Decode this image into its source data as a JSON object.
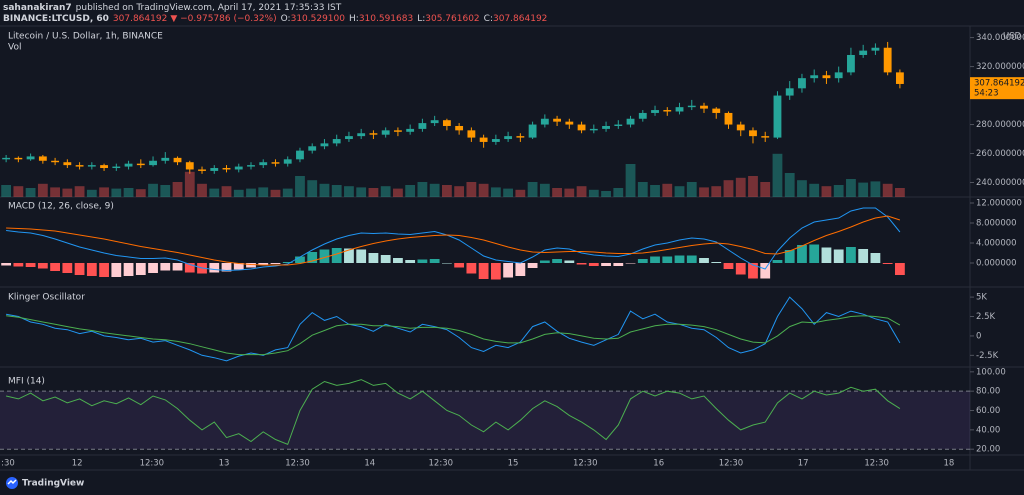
{
  "header": {
    "publisher": "sahanakiran7",
    "published": "published on TradingView.com, April 17, 2021 17:35:33 IST",
    "symbol": "BINANCE:LTCUSD, 60",
    "price": "307.864192",
    "change": "▼ −0.975786 (−0.32%)",
    "ohlc": [
      {
        "label": "O:",
        "value": "310.529100"
      },
      {
        "label": "H:",
        "value": "310.591683"
      },
      {
        "label": "L:",
        "value": "305.761602"
      },
      {
        "label": "C:",
        "value": "307.864192"
      }
    ]
  },
  "chart_data": [
    {
      "type": "candlestick",
      "title": "Litecoin / U.S. Dollar, 1h, BINANCE",
      "currency": "USD",
      "up_color": "#26a69a",
      "down_color": "#ff9800",
      "open": [
        256,
        257,
        256,
        258,
        255,
        254,
        252,
        251,
        252,
        250,
        251,
        253,
        252,
        255,
        257,
        254,
        249,
        248,
        250,
        249,
        251,
        252,
        254,
        253,
        256,
        262,
        265,
        267,
        270,
        272,
        274,
        273,
        276,
        275,
        277,
        281,
        283,
        279,
        276,
        271,
        268,
        270,
        272,
        271,
        280,
        284,
        282,
        280,
        276,
        277,
        279,
        280,
        284,
        288,
        290,
        289,
        292,
        293,
        291,
        288,
        280,
        276,
        272,
        271,
        300,
        305,
        312,
        314,
        312,
        316,
        328,
        331,
        333,
        316
      ],
      "high": [
        259,
        258,
        260,
        259,
        257,
        256,
        254,
        254,
        253,
        253,
        255,
        256,
        258,
        261,
        258,
        255,
        251,
        252,
        252,
        253,
        254,
        256,
        256,
        258,
        264,
        267,
        270,
        273,
        275,
        277,
        276,
        278,
        278,
        280,
        284,
        286,
        284,
        281,
        278,
        273,
        273,
        275,
        274,
        282,
        287,
        286,
        284,
        282,
        280,
        282,
        283,
        286,
        290,
        293,
        292,
        295,
        297,
        295,
        292,
        289,
        282,
        278,
        275,
        303,
        310,
        315,
        318,
        317,
        320,
        333,
        335,
        336,
        337,
        318
      ],
      "low": [
        254,
        254,
        255,
        253,
        252,
        250,
        249,
        249,
        248,
        248,
        249,
        250,
        251,
        253,
        252,
        246,
        246,
        246,
        247,
        247,
        249,
        250,
        251,
        251,
        254,
        260,
        263,
        265,
        268,
        270,
        270,
        271,
        272,
        273,
        275,
        279,
        276,
        273,
        268,
        264,
        266,
        268,
        268,
        270,
        278,
        279,
        277,
        274,
        274,
        275,
        277,
        278,
        282,
        286,
        286,
        287,
        290,
        288,
        284,
        277,
        272,
        267,
        268,
        270,
        297,
        302,
        309,
        308,
        309,
        314,
        326,
        328,
        314,
        305
      ],
      "close": [
        257,
        256,
        258,
        255,
        254,
        252,
        251,
        252,
        250,
        251,
        253,
        252,
        255,
        257,
        254,
        249,
        248,
        250,
        249,
        251,
        252,
        254,
        253,
        256,
        262,
        265,
        267,
        270,
        272,
        274,
        273,
        276,
        275,
        277,
        281,
        283,
        279,
        276,
        271,
        268,
        270,
        272,
        271,
        280,
        284,
        282,
        280,
        276,
        277,
        279,
        280,
        284,
        288,
        290,
        289,
        292,
        293,
        291,
        288,
        280,
        276,
        272,
        271,
        300,
        305,
        312,
        314,
        312,
        316,
        328,
        331,
        333,
        316,
        308
      ],
      "ylim": [
        230,
        348
      ],
      "yticks": [
        {
          "value": 240,
          "label": "240.000000"
        },
        {
          "value": 260,
          "label": "260.000000"
        },
        {
          "value": 280,
          "label": "280.000000"
        },
        {
          "value": 300,
          "label": "300.000000"
        },
        {
          "value": 320,
          "label": "320.000000"
        },
        {
          "value": 340,
          "label": "340.000000"
        }
      ],
      "last_price": {
        "value": 307.864192,
        "label": "307.864192",
        "countdown": "54:23",
        "color": "#ff9800"
      },
      "xlim": [
        0,
        78
      ],
      "xticks": [
        {
          "value": 0.65,
          "label": ":30"
        },
        {
          "value": 6.3,
          "label": "12"
        },
        {
          "value": 12.4,
          "label": "12:30"
        },
        {
          "value": 18.3,
          "label": "13"
        },
        {
          "value": 24.3,
          "label": "12:30"
        },
        {
          "value": 30.2,
          "label": "14"
        },
        {
          "value": 36.0,
          "label": "12:30"
        },
        {
          "value": 41.9,
          "label": "15"
        },
        {
          "value": 47.8,
          "label": "12:30"
        },
        {
          "value": 53.8,
          "label": "16"
        },
        {
          "value": 59.7,
          "label": "12:30"
        },
        {
          "value": 65.6,
          "label": "17"
        },
        {
          "value": 71.6,
          "label": "12:30"
        },
        {
          "value": 77.5,
          "label": "18"
        }
      ]
    },
    {
      "type": "volume",
      "title": "Vol",
      "ylim": [
        0,
        100
      ],
      "values": [
        20,
        18,
        15,
        22,
        16,
        14,
        18,
        12,
        16,
        14,
        15,
        13,
        22,
        20,
        25,
        42,
        22,
        14,
        18,
        12,
        14,
        16,
        12,
        14,
        35,
        28,
        22,
        20,
        18,
        16,
        15,
        18,
        14,
        20,
        25,
        22,
        20,
        18,
        25,
        22,
        16,
        14,
        12,
        25,
        22,
        15,
        14,
        18,
        12,
        10,
        15,
        55,
        25,
        20,
        22,
        18,
        25,
        16,
        18,
        28,
        32,
        35,
        25,
        72,
        40,
        28,
        22,
        18,
        20,
        30,
        24,
        26,
        22,
        15
      ]
    },
    {
      "type": "macd",
      "title": "MACD (12, 26, close, 9)",
      "ylim": [
        -4.8,
        13.2
      ],
      "yticks": [
        {
          "value": 0,
          "label": "0.000000"
        },
        {
          "value": 4,
          "label": "4.000000"
        },
        {
          "value": 8,
          "label": "8.000000"
        },
        {
          "value": 12,
          "label": "12.000000"
        }
      ],
      "histogram": [
        -0.5,
        -0.7,
        -0.8,
        -1.1,
        -1.6,
        -2.0,
        -2.4,
        -2.6,
        -2.8,
        -2.8,
        -2.6,
        -2.4,
        -2.0,
        -1.5,
        -1.5,
        -1.9,
        -2.1,
        -1.9,
        -1.7,
        -1.3,
        -0.9,
        -0.4,
        -0.2,
        0.2,
        1.3,
        2.2,
        2.7,
        3.0,
        2.9,
        2.7,
        2.0,
        1.6,
        1.0,
        0.6,
        0.7,
        0.8,
        0,
        -0.9,
        -2.1,
        -3.2,
        -3.3,
        -2.9,
        -2.6,
        -1.0,
        0.5,
        0.8,
        0.5,
        -0.3,
        -0.6,
        -0.6,
        -0.6,
        -0.1,
        0.8,
        1.3,
        1.3,
        1.5,
        1.5,
        1.0,
        0.2,
        -1.2,
        -2.3,
        -3.1,
        -3.1,
        0.6,
        2.6,
        3.6,
        3.7,
        3.1,
        2.7,
        3.2,
        2.8,
        2.0,
        -0.2,
        -2.4
      ],
      "series": [
        {
          "color": "#2196f3",
          "values": [
            6.5,
            6.2,
            6.0,
            5.5,
            4.8,
            4.0,
            3.2,
            2.6,
            2.0,
            1.5,
            1.2,
            0.9,
            0.9,
            1.0,
            0.6,
            -0.3,
            -1.0,
            -1.3,
            -1.5,
            -1.4,
            -1.2,
            -0.8,
            -0.6,
            -0.2,
            1.2,
            2.6,
            3.8,
            4.8,
            5.5,
            6.0,
            5.9,
            6.0,
            5.8,
            5.7,
            6.0,
            6.3,
            5.6,
            4.6,
            3.0,
            1.4,
            0.6,
            0.3,
            0,
            1.2,
            2.6,
            3.0,
            2.8,
            2.0,
            1.6,
            1.4,
            1.3,
            1.8,
            2.8,
            3.6,
            4.0,
            4.6,
            5.0,
            4.8,
            4.2,
            2.6,
            1.0,
            -0.4,
            -1.2,
            2.4,
            5.0,
            7.0,
            8.2,
            8.6,
            9.0,
            10.4,
            11.0,
            11.0,
            9.2,
            6.2
          ]
        },
        {
          "color": "#ff6d00",
          "values": [
            7.0,
            6.9,
            6.8,
            6.6,
            6.4,
            6.0,
            5.6,
            5.2,
            4.8,
            4.3,
            3.8,
            3.3,
            2.9,
            2.5,
            2.1,
            1.6,
            1.1,
            0.6,
            0.2,
            -0.1,
            -0.3,
            -0.4,
            -0.4,
            -0.4,
            -0.1,
            0.4,
            1.1,
            1.8,
            2.6,
            3.3,
            3.9,
            4.4,
            4.8,
            5.1,
            5.3,
            5.5,
            5.6,
            5.5,
            5.1,
            4.6,
            3.9,
            3.2,
            2.6,
            2.2,
            2.1,
            2.2,
            2.3,
            2.3,
            2.2,
            2.0,
            1.9,
            1.9,
            2.0,
            2.3,
            2.7,
            3.1,
            3.5,
            3.8,
            4.0,
            3.8,
            3.3,
            2.7,
            1.9,
            1.8,
            2.4,
            3.4,
            4.5,
            5.5,
            6.3,
            7.2,
            8.2,
            9.0,
            9.4,
            8.6
          ]
        }
      ]
    },
    {
      "type": "klinger",
      "title": "Klinger Oscillator",
      "ylim": [
        -4000,
        6300
      ],
      "yticks": [
        {
          "value": -2500,
          "label": "-2.5K"
        },
        0,
        {
          "value": 2500,
          "label": "2.5K"
        },
        {
          "value": 5000,
          "label": "5K"
        }
      ],
      "series": [
        {
          "color": "#2196f3",
          "values": [
            2800,
            2500,
            1800,
            1500,
            1000,
            800,
            300,
            600,
            0,
            -200,
            -500,
            -300,
            -800,
            -600,
            -1200,
            -1800,
            -2500,
            -2800,
            -3200,
            -2600,
            -2200,
            -2500,
            -1800,
            -1500,
            1500,
            3000,
            2000,
            2500,
            1500,
            1200,
            600,
            1500,
            1000,
            500,
            1500,
            1200,
            800,
            -200,
            -1500,
            -2000,
            -1200,
            -1500,
            -800,
            1200,
            1800,
            600,
            -300,
            -800,
            -1200,
            -500,
            200,
            3200,
            2200,
            2800,
            1800,
            1500,
            1000,
            800,
            -200,
            -1500,
            -2200,
            -1800,
            -1000,
            2500,
            5000,
            3500,
            1500,
            3000,
            2500,
            3200,
            2800,
            2200,
            1800,
            -900
          ]
        },
        {
          "color": "#4caf50",
          "values": [
            2600,
            2400,
            2100,
            1800,
            1500,
            1200,
            900,
            700,
            400,
            200,
            0,
            -200,
            -400,
            -500,
            -700,
            -1000,
            -1400,
            -1800,
            -2200,
            -2400,
            -2400,
            -2400,
            -2200,
            -1900,
            -1000,
            100,
            700,
            1300,
            1500,
            1500,
            1300,
            1300,
            1200,
            1000,
            1100,
            1100,
            1000,
            700,
            200,
            -400,
            -700,
            -900,
            -900,
            -400,
            200,
            400,
            300,
            0,
            -300,
            -400,
            -300,
            500,
            900,
            1300,
            1500,
            1500,
            1400,
            1200,
            800,
            200,
            -400,
            -800,
            -900,
            0,
            1200,
            1800,
            1700,
            2000,
            2200,
            2500,
            2600,
            2500,
            2300,
            1400
          ]
        }
      ]
    },
    {
      "type": "mfi",
      "title": "MFI (14)",
      "ylim": [
        14,
        105
      ],
      "bands": [
        20,
        80
      ],
      "band_color": "#7e57c2",
      "color": "#4caf50",
      "yticks": [
        {
          "value": 20,
          "label": "20.00"
        },
        {
          "value": 40,
          "label": "40.00"
        },
        {
          "value": 60,
          "label": "60.00"
        },
        {
          "value": 80,
          "label": "80.00"
        },
        {
          "value": 100,
          "label": "100.00"
        }
      ],
      "values": [
        75,
        72,
        78,
        70,
        74,
        68,
        72,
        65,
        70,
        67,
        73,
        66,
        75,
        71,
        62,
        50,
        40,
        48,
        32,
        36,
        28,
        38,
        30,
        25,
        60,
        82,
        90,
        86,
        88,
        92,
        86,
        88,
        78,
        72,
        80,
        70,
        60,
        55,
        45,
        38,
        48,
        40,
        50,
        62,
        70,
        64,
        55,
        48,
        40,
        30,
        45,
        72,
        80,
        75,
        80,
        78,
        72,
        75,
        62,
        50,
        40,
        45,
        48,
        68,
        78,
        72,
        80,
        76,
        78,
        84,
        80,
        82,
        70,
        62
      ]
    }
  ],
  "footer": {
    "brand": "TradingView"
  }
}
